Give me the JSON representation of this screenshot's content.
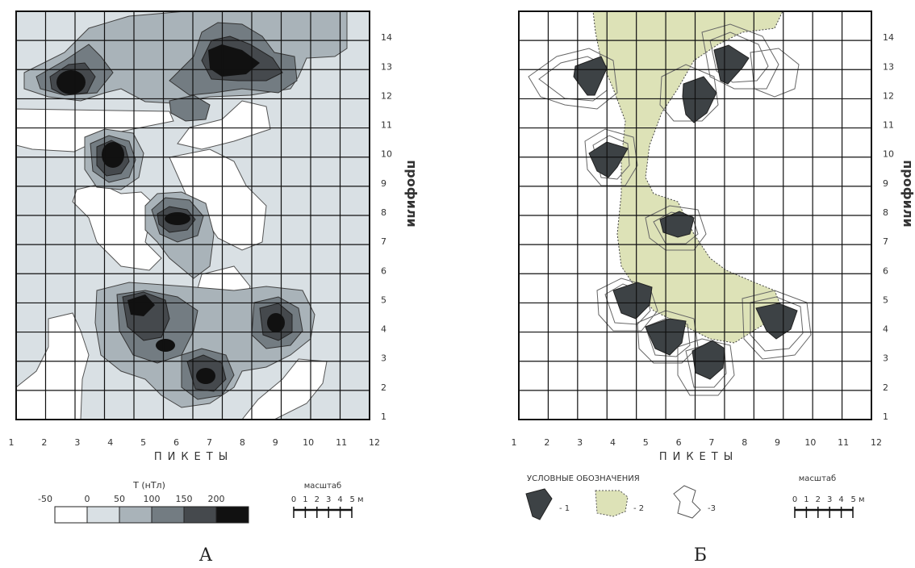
{
  "panel_a": {
    "caption": "А",
    "pickets_label": "ПИКЕТЫ",
    "profiles_label": "профили",
    "x_ticks": [
      "1",
      "2",
      "3",
      "4",
      "5",
      "6",
      "7",
      "8",
      "9",
      "10",
      "11",
      "12"
    ],
    "y_ticks": [
      "1",
      "2",
      "3",
      "4",
      "5",
      "6",
      "7",
      "8",
      "9",
      "10",
      "11",
      "12",
      "13",
      "14"
    ],
    "legend_title": "T (нТл)",
    "legend_values": [
      "-50",
      "0",
      "50",
      "100",
      "150",
      "200"
    ],
    "legend_colors": [
      "#ffffff",
      "#d9e0e4",
      "#a9b3b9",
      "#737c82",
      "#45494d",
      "#111111"
    ],
    "scale_title": "масштаб",
    "scale_labels": [
      "0",
      "1",
      "2",
      "3",
      "4",
      "5 м"
    ]
  },
  "panel_b": {
    "caption": "Б",
    "pickets_label": "ПИКЕТЫ",
    "profiles_label": "профили",
    "x_ticks": [
      "1",
      "2",
      "3",
      "4",
      "5",
      "6",
      "7",
      "8",
      "9",
      "10",
      "11",
      "12"
    ],
    "y_ticks": [
      "1",
      "2",
      "3",
      "4",
      "5",
      "6",
      "7",
      "8",
      "9",
      "10",
      "11",
      "12",
      "13",
      "14"
    ],
    "legend_title": "УСЛОВНЫЕ ОБОЗНАЧЕНИЯ",
    "legend_items": [
      "- 1",
      "- 2",
      "-3"
    ],
    "zone_color": "#dde2b7",
    "scale_title": "масштаб",
    "scale_labels": [
      "0",
      "1",
      "2",
      "3",
      "4",
      "5 м"
    ]
  }
}
